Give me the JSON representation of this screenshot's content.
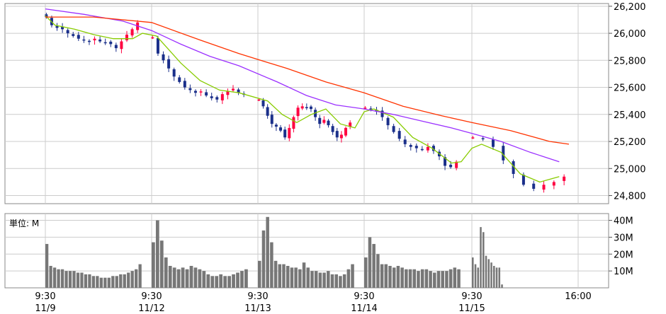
{
  "chart_data": [
    {
      "type": "candlestick",
      "title": "",
      "sessions": [
        "11/9",
        "11/12",
        "11/13",
        "11/14",
        "11/15"
      ],
      "x_ticks": [
        {
          "session": 0,
          "time": "9:30",
          "date": "11/9"
        },
        {
          "session": 1,
          "time": "9:30",
          "date": "11/12"
        },
        {
          "session": 2,
          "time": "9:30",
          "date": "11/13"
        },
        {
          "session": 3,
          "time": "9:30",
          "date": "11/14"
        },
        {
          "session": 4,
          "time": "9:30",
          "date": "11/15"
        },
        {
          "session": 4,
          "time": "16:00",
          "date": ""
        }
      ],
      "y_ticks": [
        "24,800",
        "25,000",
        "25,200",
        "25,400",
        "25,600",
        "25,800",
        "26,000",
        "26,200"
      ],
      "y_tick_values": [
        24800,
        25000,
        25200,
        25400,
        25600,
        25800,
        26000,
        26200
      ],
      "ylim": [
        24740,
        26220
      ],
      "grid": true,
      "colors": {
        "up": "#ff0040",
        "down": "#1a2f8a",
        "ma_short": "#88cc00",
        "ma_mid": "#9b30ff",
        "ma_long": "#ff3300"
      },
      "session_close_series": [
        [
          26120,
          26060,
          26040,
          26030,
          26000,
          25980,
          25960,
          25950,
          25940,
          25960,
          25940,
          25930,
          25920,
          25890,
          25940,
          25990,
          26030,
          26080
        ],
        [
          25970,
          25850,
          25800,
          25740,
          25680,
          25640,
          25600,
          25580,
          25560,
          25570,
          25540,
          25520,
          25510,
          25550,
          25570,
          25590,
          25560,
          25550
        ],
        [
          25510,
          25460,
          25390,
          25330,
          25310,
          25280,
          25230,
          25300,
          25380,
          25450,
          25460,
          25450,
          25440,
          25380,
          25330,
          25360,
          25320,
          25270,
          25230,
          25250,
          25300,
          25340
        ],
        [
          25450,
          25440,
          25420,
          25380,
          25320,
          25270,
          25220,
          25180,
          25160,
          25150,
          25140,
          25160,
          25130,
          25090,
          25020,
          25010,
          25050
        ],
        [
          25230,
          25220,
          25160,
          25060,
          24960,
          24880,
          24850,
          24880,
          24900,
          24940
        ]
      ],
      "moving_averages": [
        {
          "key": "ma_short",
          "points": [
            [
              0,
              0,
              26130
            ],
            [
              0,
              0.1,
              26060
            ],
            [
              0,
              0.3,
              26030
            ],
            [
              0,
              0.5,
              25990
            ],
            [
              0,
              0.7,
              25960
            ],
            [
              0,
              0.9,
              25960
            ],
            [
              0,
              1,
              26000
            ],
            [
              1,
              0.05,
              25980
            ],
            [
              1,
              0.15,
              25900
            ],
            [
              1,
              0.3,
              25780
            ],
            [
              1,
              0.5,
              25650
            ],
            [
              1,
              0.7,
              25580
            ],
            [
              1,
              0.9,
              25560
            ],
            [
              2,
              0.1,
              25500
            ],
            [
              2,
              0.25,
              25400
            ],
            [
              2,
              0.4,
              25340
            ],
            [
              2,
              0.55,
              25400
            ],
            [
              2,
              0.7,
              25440
            ],
            [
              2,
              0.85,
              25330
            ],
            [
              2,
              1,
              25300
            ],
            [
              3,
              0,
              25420
            ],
            [
              3,
              0.1,
              25440
            ],
            [
              3,
              0.3,
              25380
            ],
            [
              3,
              0.5,
              25230
            ],
            [
              3,
              0.7,
              25150
            ],
            [
              3,
              0.9,
              25040
            ],
            [
              3,
              1,
              25050
            ],
            [
              4,
              0,
              25150
            ],
            [
              4,
              0.1,
              25180
            ],
            [
              4,
              0.3,
              25120
            ],
            [
              4,
              0.5,
              24960
            ],
            [
              4,
              0.7,
              24900
            ],
            [
              4,
              0.9,
              24940
            ]
          ]
        },
        {
          "key": "ma_mid",
          "points": [
            [
              0,
              0,
              26180
            ],
            [
              0,
              0.4,
              26140
            ],
            [
              0,
              0.8,
              26090
            ],
            [
              1,
              0,
              26020
            ],
            [
              1,
              0.3,
              25920
            ],
            [
              1,
              0.6,
              25830
            ],
            [
              1,
              0.9,
              25760
            ],
            [
              2,
              0.2,
              25640
            ],
            [
              2,
              0.5,
              25540
            ],
            [
              2,
              0.8,
              25470
            ],
            [
              3,
              0,
              25440
            ],
            [
              3,
              0.3,
              25400
            ],
            [
              3,
              0.6,
              25350
            ],
            [
              3,
              0.9,
              25300
            ],
            [
              4,
              0,
              25260
            ],
            [
              4,
              0.3,
              25200
            ],
            [
              4,
              0.6,
              25120
            ],
            [
              4,
              0.9,
              25050
            ]
          ]
        },
        {
          "key": "ma_long",
          "points": [
            [
              0,
              0,
              26120
            ],
            [
              0,
              0.5,
              26120
            ],
            [
              1,
              0,
              26080
            ],
            [
              1,
              0.5,
              25950
            ],
            [
              1,
              0.9,
              25850
            ],
            [
              2,
              0.3,
              25740
            ],
            [
              2,
              0.7,
              25640
            ],
            [
              3,
              0,
              25560
            ],
            [
              3,
              0.4,
              25460
            ],
            [
              3,
              0.8,
              25390
            ],
            [
              4,
              0,
              25340
            ],
            [
              4,
              0.4,
              25280
            ],
            [
              4,
              0.8,
              25200
            ],
            [
              4,
              1,
              25180
            ]
          ]
        }
      ]
    },
    {
      "type": "bar",
      "title": "",
      "unit_label": "単位: M",
      "y_ticks": [
        "10M",
        "20M",
        "30M",
        "40M"
      ],
      "y_tick_values": [
        10,
        20,
        30,
        40
      ],
      "ylim": [
        0,
        44
      ],
      "grid": true,
      "session_volumes": [
        [
          26,
          13,
          12,
          11,
          11,
          10,
          10,
          10,
          9,
          9,
          8,
          8,
          7,
          7,
          6,
          6,
          6,
          7,
          7,
          8,
          8,
          9,
          10,
          11,
          14
        ],
        [
          27,
          40,
          28,
          18,
          13,
          12,
          11,
          12,
          11,
          13,
          12,
          11,
          10,
          8,
          7,
          7,
          8,
          7,
          7,
          8,
          9,
          10,
          11
        ],
        [
          16,
          34,
          42,
          27,
          16,
          14,
          14,
          13,
          12,
          12,
          11,
          15,
          12,
          10,
          10,
          9,
          9,
          10,
          8,
          8,
          7,
          8,
          11,
          14
        ],
        [
          18,
          30,
          26,
          20,
          14,
          14,
          13,
          12,
          13,
          12,
          11,
          11,
          11,
          10,
          11,
          11,
          10,
          9,
          10,
          10,
          10,
          11,
          12,
          11
        ],
        [
          18,
          14,
          12,
          36,
          33,
          19,
          17,
          15,
          13,
          12,
          12,
          2
        ]
      ]
    }
  ]
}
